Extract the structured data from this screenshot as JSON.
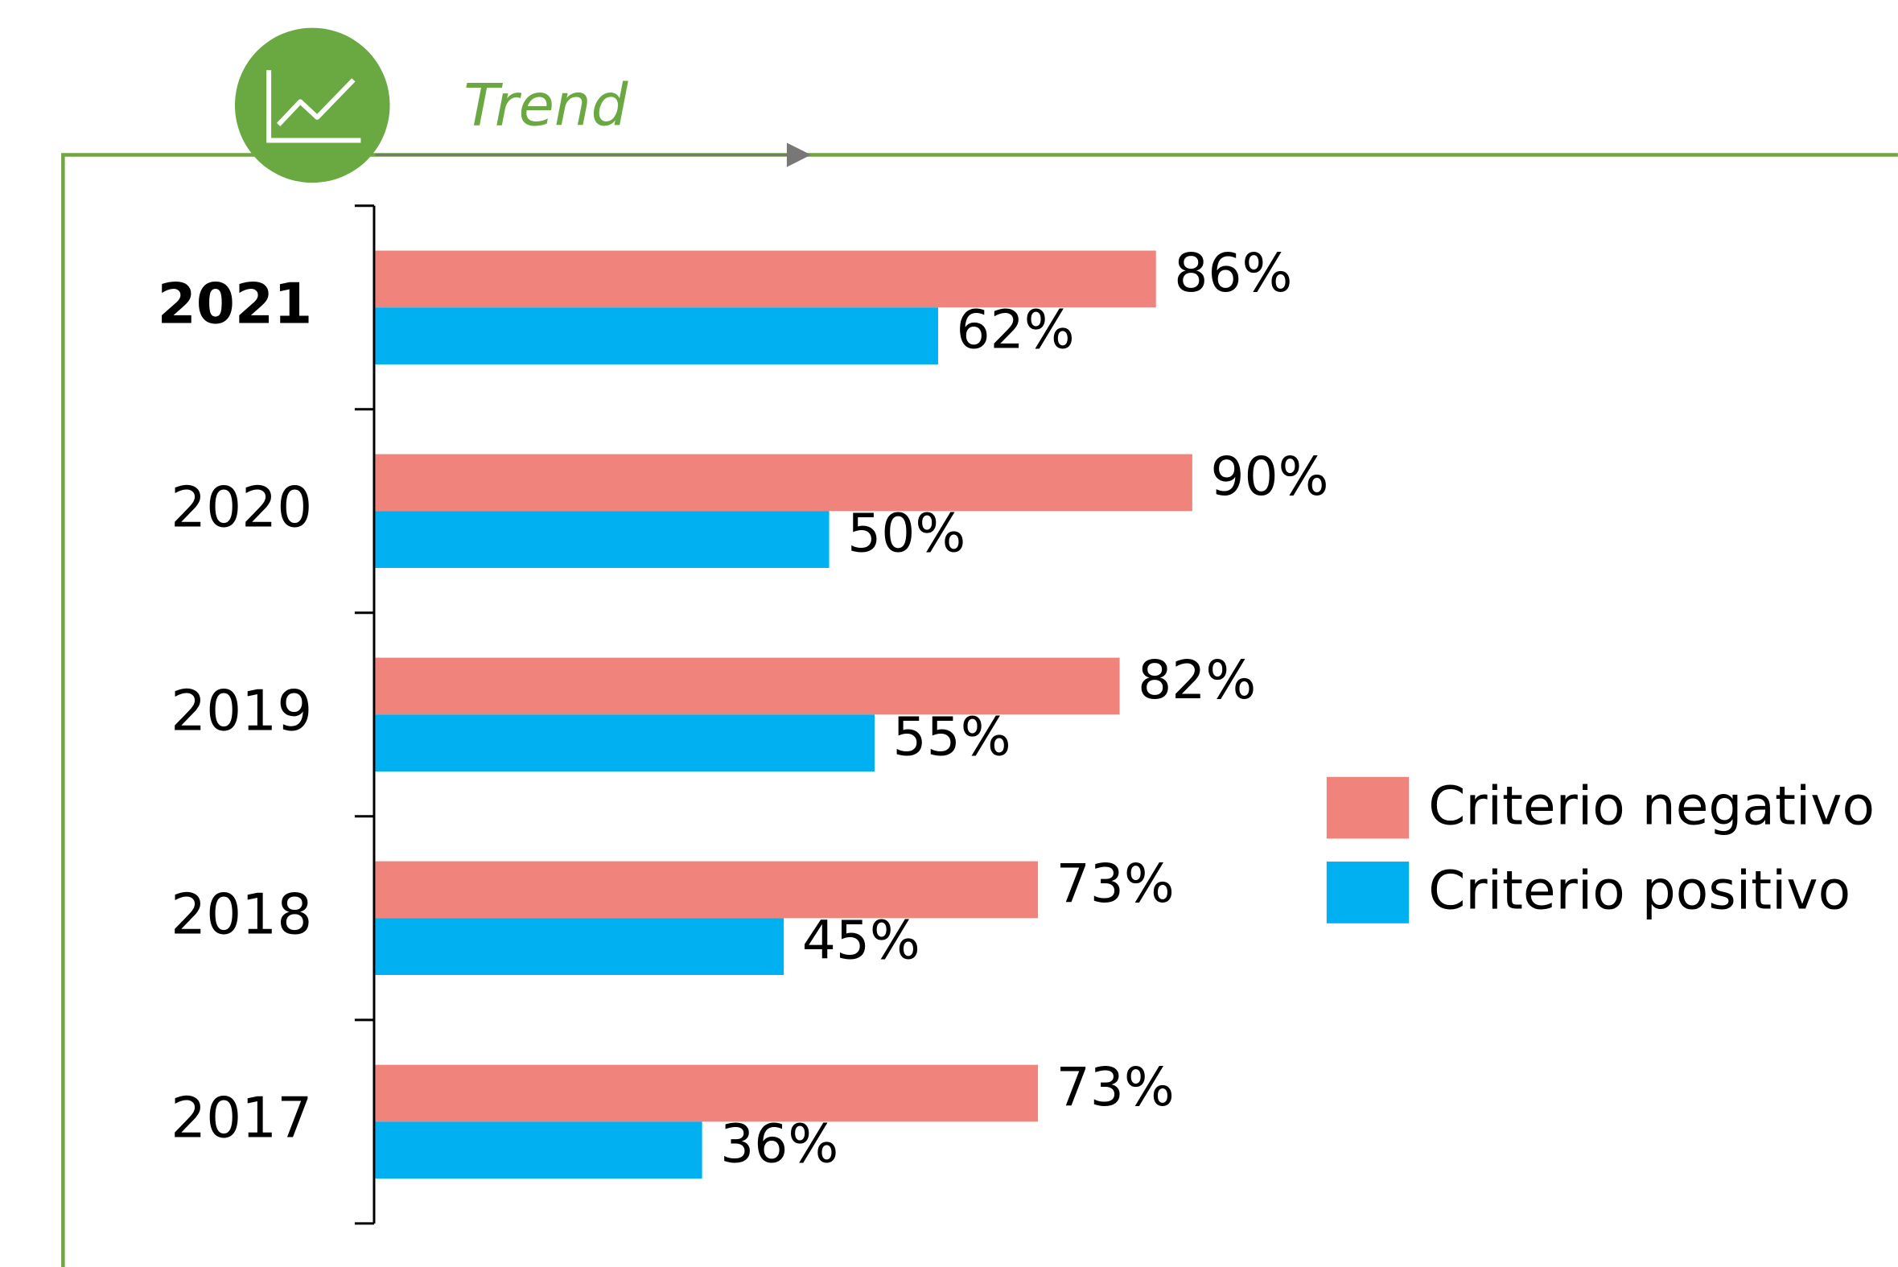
{
  "chart_data": {
    "type": "bar",
    "orientation": "horizontal",
    "title": "Trend",
    "categories": [
      "2021",
      "2020",
      "2019",
      "2018",
      "2017"
    ],
    "xlim": [
      0,
      100
    ],
    "legend": "right",
    "series": [
      {
        "name": "Criterio negativo",
        "color": "#f0847c",
        "values": [
          86,
          90,
          82,
          73,
          73
        ],
        "value_labels": [
          "86%",
          "90%",
          "82%",
          "73%",
          "73%"
        ]
      },
      {
        "name": "Criterio positivo",
        "color": "#00b0f0",
        "values": [
          62,
          50,
          55,
          45,
          36
        ],
        "value_labels": [
          "62%",
          "50%",
          "55%",
          "45%",
          "36%"
        ]
      }
    ]
  }
}
